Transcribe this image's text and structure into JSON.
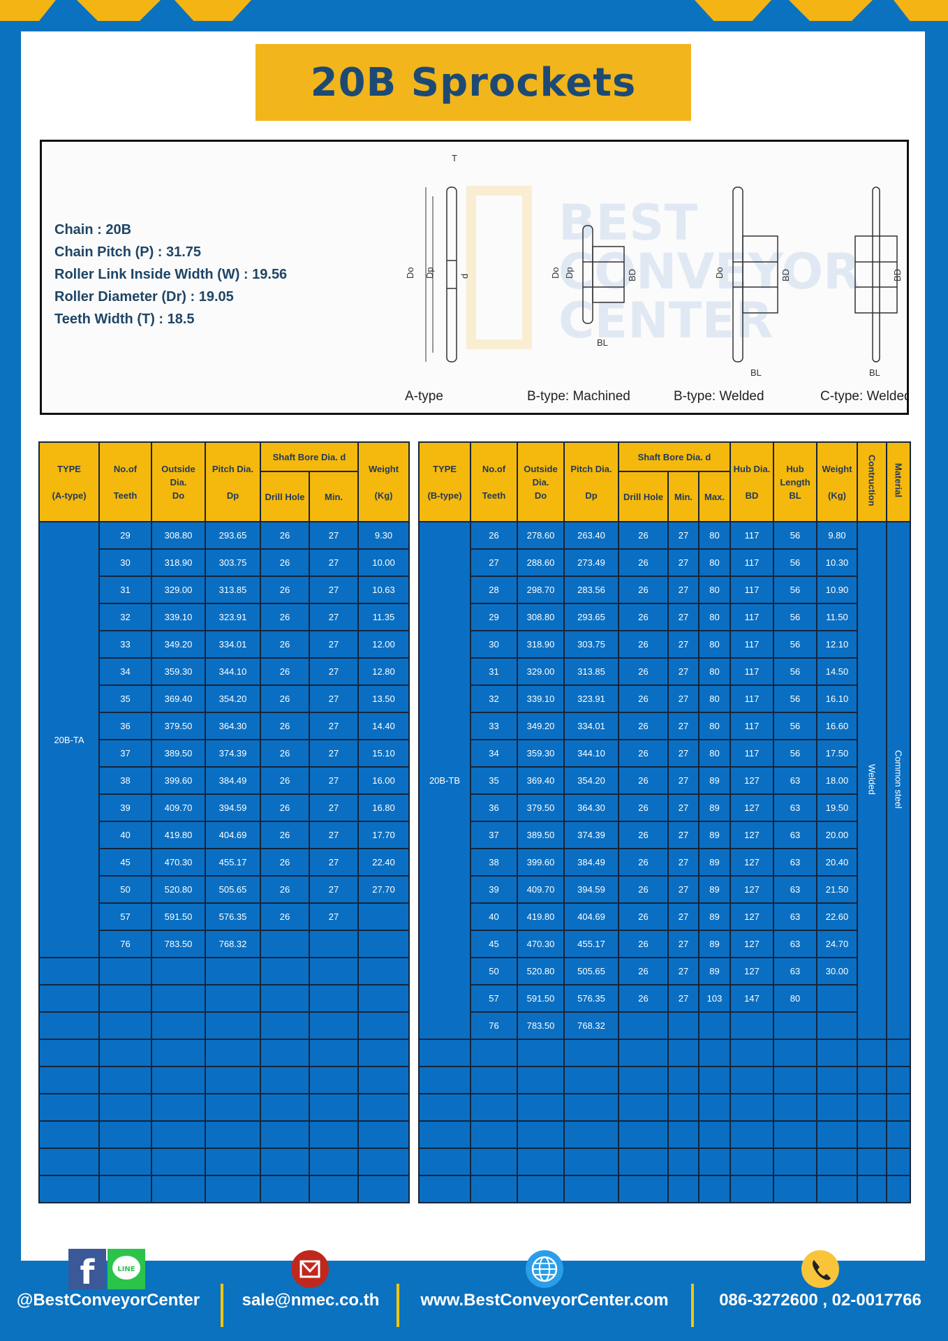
{
  "title": "20B Sprockets",
  "colors": {
    "background": "#0b72c0",
    "title_box": "#f2b51c",
    "title_text": "#1d4a74",
    "header_cell": "#f5b80d",
    "data_cell": "#0a6fc2"
  },
  "specs": [
    "Chain  : 20B",
    "Chain Pitch (P)  :  31.75",
    "Roller Link Inside Width (W)  :  19.56",
    "Roller Diameter (Dr)  : 19.05",
    "Teeth Width (T)  :  18.5"
  ],
  "diagram": {
    "captions": [
      "A-type",
      "B-type: Machined",
      "B-type: Welded",
      "C-type: Welded"
    ],
    "labels": {
      "T": "T",
      "Do": "Do",
      "Dp": "Dp",
      "d": "d",
      "BD": "BD",
      "BL": "BL"
    },
    "watermark": "BEST CONVEYOR CENTER"
  },
  "table_a": {
    "headers": {
      "type": "TYPE",
      "type_sub": "(A-type)",
      "teeth": "No.of",
      "teeth_sub": "Teeth",
      "do": "Outside",
      "do_sub": "Dia.",
      "do_sub2": "Do",
      "dp": "Pitch Dia.",
      "dp_sub": "Dp",
      "bore": "Shaft Bore Dia. d",
      "drill": "Drill Hole",
      "min": "Min.",
      "weight": "Weight",
      "weight_sub": "(Kg)"
    },
    "type_value": "20B-TA",
    "rows": [
      [
        "29",
        "308.80",
        "293.65",
        "26",
        "27",
        "9.30"
      ],
      [
        "30",
        "318.90",
        "303.75",
        "26",
        "27",
        "10.00"
      ],
      [
        "31",
        "329.00",
        "313.85",
        "26",
        "27",
        "10.63"
      ],
      [
        "32",
        "339.10",
        "323.91",
        "26",
        "27",
        "11.35"
      ],
      [
        "33",
        "349.20",
        "334.01",
        "26",
        "27",
        "12.00"
      ],
      [
        "34",
        "359.30",
        "344.10",
        "26",
        "27",
        "12.80"
      ],
      [
        "35",
        "369.40",
        "354.20",
        "26",
        "27",
        "13.50"
      ],
      [
        "36",
        "379.50",
        "364.30",
        "26",
        "27",
        "14.40"
      ],
      [
        "37",
        "389.50",
        "374.39",
        "26",
        "27",
        "15.10"
      ],
      [
        "38",
        "399.60",
        "384.49",
        "26",
        "27",
        "16.00"
      ],
      [
        "39",
        "409.70",
        "394.59",
        "26",
        "27",
        "16.80"
      ],
      [
        "40",
        "419.80",
        "404.69",
        "26",
        "27",
        "17.70"
      ],
      [
        "45",
        "470.30",
        "455.17",
        "26",
        "27",
        "22.40"
      ],
      [
        "50",
        "520.80",
        "505.65",
        "26",
        "27",
        "27.70"
      ],
      [
        "57",
        "591.50",
        "576.35",
        "26",
        "27",
        ""
      ],
      [
        "76",
        "783.50",
        "768.32",
        "",
        "",
        ""
      ]
    ]
  },
  "table_b": {
    "headers": {
      "type": "TYPE",
      "type_sub": "(B-type)",
      "teeth": "No.of",
      "teeth_sub": "Teeth",
      "do": "Outside",
      "do_sub": "Dia.",
      "do_sub2": "Do",
      "dp": "Pitch Dia.",
      "dp_sub": "Dp",
      "bore": "Shaft Bore Dia. d",
      "drill": "Drill Hole",
      "min": "Min.",
      "max": "Max.",
      "hub": "Hub Dia.",
      "hub_sub": "BD",
      "hubl": "Hub",
      "hubl_sub": "Length",
      "hubl_sub2": "BL",
      "weight": "Weight",
      "weight_sub": "(Kg)",
      "construction": "Contruction",
      "material": "Material"
    },
    "type_value": "20B-TB",
    "construction_value": "Welded",
    "material_value": "Common  steel",
    "rows": [
      [
        "26",
        "278.60",
        "263.40",
        "26",
        "27",
        "80",
        "117",
        "56",
        "9.80"
      ],
      [
        "27",
        "288.60",
        "273.49",
        "26",
        "27",
        "80",
        "117",
        "56",
        "10.30"
      ],
      [
        "28",
        "298.70",
        "283.56",
        "26",
        "27",
        "80",
        "117",
        "56",
        "10.90"
      ],
      [
        "29",
        "308.80",
        "293.65",
        "26",
        "27",
        "80",
        "117",
        "56",
        "11.50"
      ],
      [
        "30",
        "318.90",
        "303.75",
        "26",
        "27",
        "80",
        "117",
        "56",
        "12.10"
      ],
      [
        "31",
        "329.00",
        "313.85",
        "26",
        "27",
        "80",
        "117",
        "56",
        "14.50"
      ],
      [
        "32",
        "339.10",
        "323.91",
        "26",
        "27",
        "80",
        "117",
        "56",
        "16.10"
      ],
      [
        "33",
        "349.20",
        "334.01",
        "26",
        "27",
        "80",
        "117",
        "56",
        "16.60"
      ],
      [
        "34",
        "359.30",
        "344.10",
        "26",
        "27",
        "80",
        "117",
        "56",
        "17.50"
      ],
      [
        "35",
        "369.40",
        "354.20",
        "26",
        "27",
        "89",
        "127",
        "63",
        "18.00"
      ],
      [
        "36",
        "379.50",
        "364.30",
        "26",
        "27",
        "89",
        "127",
        "63",
        "19.50"
      ],
      [
        "37",
        "389.50",
        "374.39",
        "26",
        "27",
        "89",
        "127",
        "63",
        "20.00"
      ],
      [
        "38",
        "399.60",
        "384.49",
        "26",
        "27",
        "89",
        "127",
        "63",
        "20.40"
      ],
      [
        "39",
        "409.70",
        "394.59",
        "26",
        "27",
        "89",
        "127",
        "63",
        "21.50"
      ],
      [
        "40",
        "419.80",
        "404.69",
        "26",
        "27",
        "89",
        "127",
        "63",
        "22.60"
      ],
      [
        "45",
        "470.30",
        "455.17",
        "26",
        "27",
        "89",
        "127",
        "63",
        "24.70"
      ],
      [
        "50",
        "520.80",
        "505.65",
        "26",
        "27",
        "89",
        "127",
        "63",
        "30.00"
      ],
      [
        "57",
        "591.50",
        "576.35",
        "26",
        "27",
        "103",
        "147",
        "80",
        ""
      ],
      [
        "76",
        "783.50",
        "768.32",
        "",
        "",
        "",
        "",
        "",
        ""
      ]
    ]
  },
  "footer": {
    "social": "@BestConveyorCenter",
    "email": "sale@nmec.co.th",
    "website": "www.BestConveyorCenter.com",
    "phone": "086-3272600 , 02-0017766",
    "line_label": "LINE",
    "icons": [
      "facebook-icon",
      "line-icon",
      "email-icon",
      "globe-icon",
      "phone-icon"
    ]
  }
}
